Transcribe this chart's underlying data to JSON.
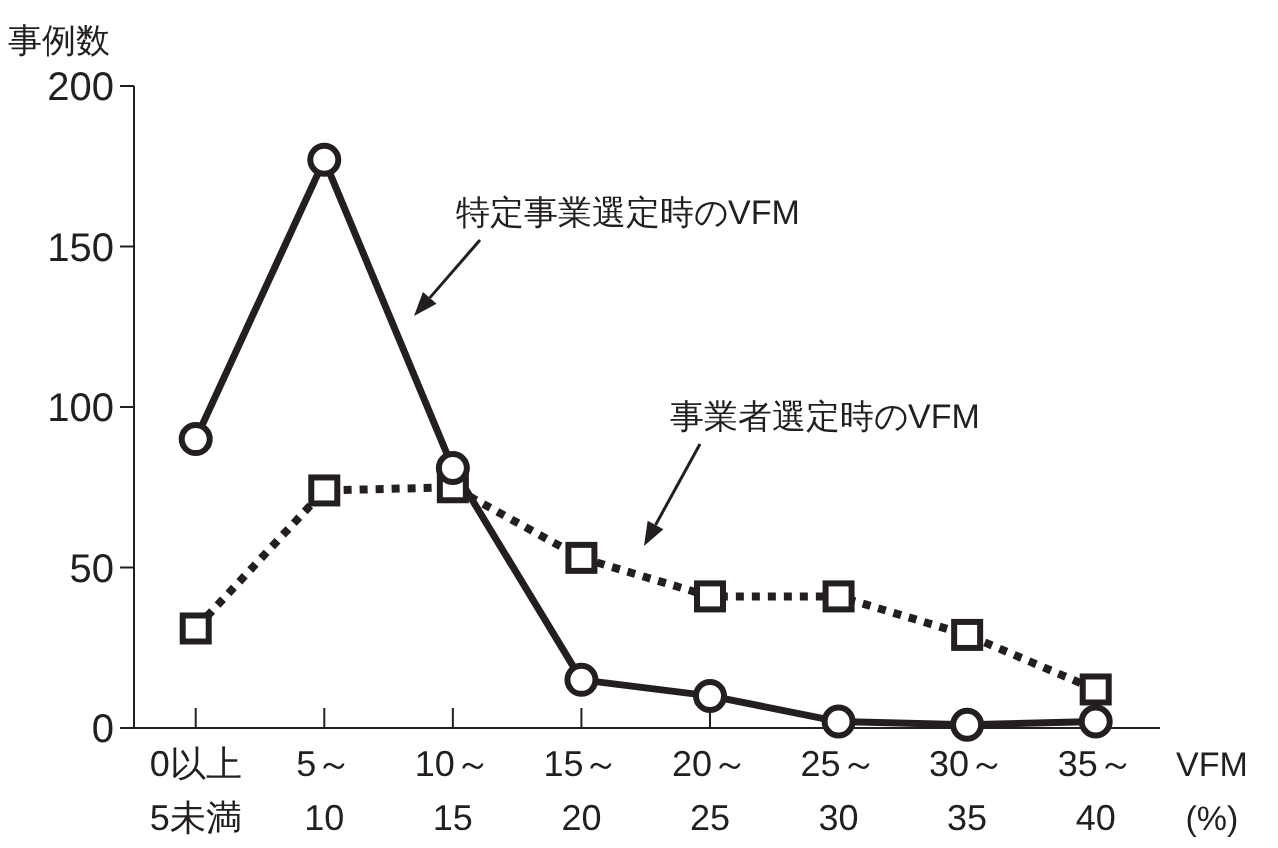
{
  "chart_data": {
    "type": "line",
    "ylabel": "事例数",
    "xlabel": "VFM\n(%)",
    "categories": [
      "0以上\n5未満",
      "5～\n10",
      "10～\n15",
      "15～\n20",
      "20～\n25",
      "25～\n30",
      "30～\n35",
      "35～\n40"
    ],
    "series": [
      {
        "name": "特定事業選定時のVFM",
        "color": "#231f20",
        "marker": "circle",
        "line_style": "solid",
        "values": [
          90,
          177,
          81,
          15,
          10,
          2,
          1,
          2
        ]
      },
      {
        "name": "事業者選定時のVFM",
        "color": "#231f20",
        "marker": "square",
        "line_style": "dotted",
        "values": [
          31,
          74,
          75,
          53,
          41,
          41,
          29,
          12
        ]
      }
    ],
    "ylim": [
      0,
      200
    ],
    "yticks": [
      0,
      50,
      100,
      150,
      200
    ],
    "grid": false
  }
}
